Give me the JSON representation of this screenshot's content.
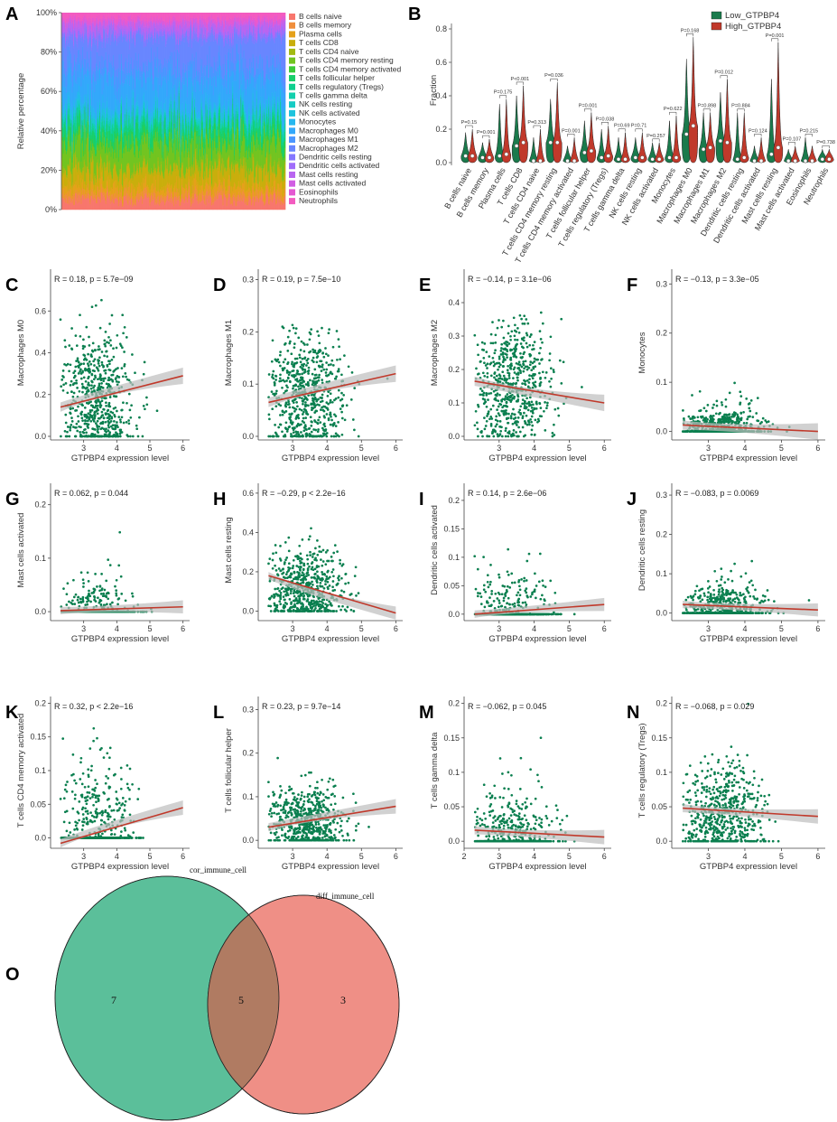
{
  "chart_data": [
    {
      "panel": "A",
      "type": "area",
      "title": "",
      "xlabel": "",
      "ylabel": "Relative percentage",
      "ylim": [
        0,
        100
      ],
      "yticks": [
        "0%",
        "20%",
        "40%",
        "60%",
        "80%",
        "100%"
      ],
      "legend": [
        "B cells naive",
        "B cells memory",
        "Plasma cells",
        "T cells CD8",
        "T cells CD4 naive",
        "T cells CD4 memory resting",
        "T cells CD4 memory activated",
        "T cells follicular helper",
        "T cells regulatory (Tregs)",
        "T cells gamma delta",
        "NK cells resting",
        "NK cells activated",
        "Monocytes",
        "Macrophages M0",
        "Macrophages M1",
        "Macrophages M2",
        "Dendritic cells resting",
        "Dendritic cells activated",
        "Mast cells resting",
        "Mast cells activated",
        "Eosinophils",
        "Neutrophils"
      ],
      "legend_colors": [
        "#f8766d",
        "#f08e3c",
        "#e5a11a",
        "#c9ae0c",
        "#a3ba12",
        "#72c420",
        "#3bcb38",
        "#18cf6a",
        "#0fd08f",
        "#12d0ad",
        "#17ccc4",
        "#1ec3dd",
        "#26b7ef",
        "#33a8fb",
        "#4b96ff",
        "#6886ff",
        "#8577ff",
        "#a06cfb",
        "#b965f0",
        "#d15ee3",
        "#e458d2",
        "#f35bc0"
      ],
      "mean_fractions": [
        5,
        3,
        4,
        8,
        1,
        12,
        2,
        6,
        3,
        1,
        2,
        2,
        3,
        15,
        7,
        13,
        2,
        1,
        4,
        1,
        2,
        3
      ]
    },
    {
      "panel": "B",
      "type": "violin",
      "ylabel": "Fraction",
      "ylim": [
        0,
        0.8
      ],
      "yticks": [
        "0.0",
        "0.2",
        "0.4",
        "0.6",
        "0.8"
      ],
      "series": [
        {
          "name": "Low_GTPBP4",
          "color": "#1a7a4c"
        },
        {
          "name": "High_GTPBP4",
          "color": "#c0392b"
        }
      ],
      "categories": [
        "B cells naive",
        "B cells memory",
        "Plasma cells",
        "T cells CD8",
        "T cells CD4 naive",
        "T cells CD4 memory resting",
        "T cells CD4 memory activated",
        "T cells follicular helper",
        "T cells regulatory (Tregs)",
        "T cells gamma delta",
        "NK cells resting",
        "NK cells activated",
        "Monocytes",
        "Macrophages M0",
        "Macrophages M1",
        "Macrophages M2",
        "Dendritic cells resting",
        "Dendritic cells activated",
        "Mast cells resting",
        "Mast cells activated",
        "Eosinophils",
        "Neutrophils"
      ],
      "pvalues": [
        "P=0.15",
        "P=0.001",
        "P=0.175",
        "P<0.001",
        "P=0.313",
        "P=0.036",
        "P=0.001",
        "P=0.001",
        "P=0.038",
        "P=0.69",
        "P=0.71",
        "P=0.257",
        "P=0.622",
        "P=0.168",
        "P=0.898",
        "P=0.012",
        "P=0.884",
        "P=0.124",
        "P=0.001",
        "P=0.107",
        "P=0.215",
        "P=0.738"
      ],
      "max_low": [
        0.18,
        0.12,
        0.35,
        0.4,
        0.15,
        0.38,
        0.1,
        0.25,
        0.2,
        0.15,
        0.15,
        0.12,
        0.25,
        0.62,
        0.3,
        0.42,
        0.3,
        0.1,
        0.5,
        0.08,
        0.15,
        0.08
      ],
      "max_high": [
        0.2,
        0.14,
        0.38,
        0.46,
        0.2,
        0.48,
        0.15,
        0.3,
        0.22,
        0.18,
        0.18,
        0.12,
        0.28,
        0.75,
        0.3,
        0.5,
        0.3,
        0.15,
        0.72,
        0.1,
        0.1,
        0.08
      ],
      "median_low": [
        0.04,
        0.03,
        0.04,
        0.1,
        0.01,
        0.12,
        0.01,
        0.06,
        0.03,
        0.02,
        0.03,
        0.02,
        0.03,
        0.17,
        0.08,
        0.13,
        0.02,
        0.01,
        0.05,
        0.01,
        0.01,
        0.02
      ],
      "median_high": [
        0.04,
        0.03,
        0.05,
        0.12,
        0.01,
        0.12,
        0.01,
        0.07,
        0.04,
        0.02,
        0.03,
        0.02,
        0.03,
        0.22,
        0.09,
        0.12,
        0.03,
        0.01,
        0.09,
        0.01,
        0.01,
        0.02
      ]
    },
    {
      "panel": "C",
      "type": "scatter",
      "ylabel": "Macrophages M0",
      "xlabel": "GTPBP4 expression level",
      "r_text": "R = 0.18, p = 5.7e−09",
      "xlim": [
        2,
        6.2
      ],
      "ylim": [
        0,
        0.8
      ],
      "yticks": [
        0,
        0.2,
        0.4,
        0.6
      ],
      "xticks": [
        3,
        4,
        5,
        6
      ],
      "fit": [
        0.14,
        0.29
      ],
      "center": 0.2,
      "spread": 0.15,
      "floor_frac": 0.12
    },
    {
      "panel": "D",
      "type": "scatter",
      "ylabel": "Macrophages M1",
      "xlabel": "GTPBP4 expression level",
      "r_text": "R = 0.19, p = 7.5e−10",
      "xlim": [
        2,
        6.2
      ],
      "ylim": [
        0,
        0.32
      ],
      "yticks": [
        0,
        0.1,
        0.2,
        0.3
      ],
      "xticks": [
        3,
        4,
        5,
        6
      ],
      "fit": [
        0.065,
        0.12
      ],
      "center": 0.085,
      "spread": 0.045,
      "floor_frac": 0.06
    },
    {
      "panel": "E",
      "type": "scatter",
      "ylabel": "Macrophages M2",
      "xlabel": "GTPBP4 expression level",
      "r_text": "R = −0.14, p = 3.1e−06",
      "xlim": [
        2,
        6.2
      ],
      "ylim": [
        0,
        0.5
      ],
      "yticks": [
        0,
        0.1,
        0.2,
        0.3,
        0.4
      ],
      "xticks": [
        3,
        4,
        5,
        6
      ],
      "fit": [
        0.165,
        0.1
      ],
      "center": 0.15,
      "spread": 0.07,
      "floor_frac": 0.02
    },
    {
      "panel": "F",
      "type": "scatter",
      "ylabel": "Monocytes",
      "xlabel": "GTPBP4 expression level",
      "r_text": "R = −0.13, p = 3.3e−05",
      "xlim": [
        2,
        6.2
      ],
      "ylim": [
        -0.01,
        0.33
      ],
      "yticks": [
        0,
        0.1,
        0.2,
        0.3
      ],
      "xticks": [
        3,
        4,
        5,
        6
      ],
      "fit": [
        0.013,
        0.0
      ],
      "center": 0.015,
      "spread": 0.025,
      "floor_frac": 0.45
    },
    {
      "panel": "G",
      "type": "scatter",
      "ylabel": "Mast cells activated",
      "xlabel": "GTPBP4 expression level",
      "r_text": "R = 0.062, p = 0.044",
      "xlim": [
        2,
        6.2
      ],
      "ylim": [
        -0.01,
        0.24
      ],
      "yticks": [
        0,
        0.1,
        0.2
      ],
      "xticks": [
        3,
        4,
        5,
        6
      ],
      "fit": [
        0.002,
        0.009
      ],
      "center": 0.02,
      "spread": 0.025,
      "floor_frac": 0.8
    },
    {
      "panel": "H",
      "type": "scatter",
      "ylabel": "Mast cells resting",
      "xlabel": "GTPBP4 expression level",
      "r_text": "R = −0.29, p < 2.2e−16",
      "xlim": [
        2,
        6.2
      ],
      "ylim": [
        -0.03,
        0.65
      ],
      "yticks": [
        0,
        0.2,
        0.4,
        0.6
      ],
      "xticks": [
        3,
        4,
        5,
        6
      ],
      "fit": [
        0.18,
        -0.01
      ],
      "center": 0.12,
      "spread": 0.1,
      "floor_frac": 0.1
    },
    {
      "panel": "I",
      "type": "scatter",
      "ylabel": "Dendritic cells activated",
      "xlabel": "GTPBP4 expression level",
      "r_text": "R = 0.14, p = 2.6e−06",
      "xlim": [
        2,
        6.2
      ],
      "ylim": [
        -0.005,
        0.23
      ],
      "yticks": [
        0,
        0.05,
        0.1,
        0.15,
        0.2
      ],
      "xticks": [
        3,
        4,
        5,
        6
      ],
      "fit": [
        0.0,
        0.017
      ],
      "center": 0.03,
      "spread": 0.03,
      "floor_frac": 0.75
    },
    {
      "panel": "J",
      "type": "scatter",
      "ylabel": "Dendritic cells resting",
      "xlabel": "GTPBP4 expression level",
      "r_text": "R = −0.083, p = 0.0069",
      "xlim": [
        2,
        6.2
      ],
      "ylim": [
        -0.01,
        0.33
      ],
      "yticks": [
        0,
        0.1,
        0.2,
        0.3
      ],
      "xticks": [
        3,
        4,
        5,
        6
      ],
      "fit": [
        0.022,
        0.008
      ],
      "center": 0.025,
      "spread": 0.03,
      "floor_frac": 0.5
    },
    {
      "panel": "K",
      "type": "scatter",
      "ylabel": "T cells CD4 memory activated",
      "xlabel": "GTPBP4 expression level",
      "r_text": "R = 0.32, p < 2.2e−16",
      "xlim": [
        2,
        6.2
      ],
      "ylim": [
        -0.01,
        0.21
      ],
      "yticks": [
        0,
        0.05,
        0.1,
        0.15,
        0.2
      ],
      "xticks": [
        3,
        4,
        5,
        6
      ],
      "fit": [
        -0.008,
        0.045
      ],
      "center": 0.04,
      "spread": 0.035,
      "floor_frac": 0.6
    },
    {
      "panel": "L",
      "type": "scatter",
      "ylabel": "T cells follicular helper",
      "xlabel": "GTPBP4 expression level",
      "r_text": "R = 0.23, p = 9.7e−14",
      "xlim": [
        2,
        6.2
      ],
      "ylim": [
        -0.01,
        0.33
      ],
      "yticks": [
        0,
        0.1,
        0.2,
        0.3
      ],
      "xticks": [
        3,
        4,
        5,
        6
      ],
      "fit": [
        0.03,
        0.078
      ],
      "center": 0.05,
      "spread": 0.035,
      "floor_frac": 0.15
    },
    {
      "panel": "M",
      "type": "scatter",
      "ylabel": "T cells gamma delta",
      "xlabel": "GTPBP4 expression level",
      "r_text": "R = −0.062, p = 0.045",
      "xlim": [
        2,
        6.2
      ],
      "ylim": [
        -0.005,
        0.21
      ],
      "yticks": [
        0,
        0.05,
        0.1,
        0.15,
        0.2
      ],
      "xticks": [
        2,
        3,
        4,
        5,
        6
      ],
      "fit": [
        0.016,
        0.006
      ],
      "center": 0.025,
      "spread": 0.035,
      "floor_frac": 0.6
    },
    {
      "panel": "N",
      "type": "scatter",
      "ylabel": "T cells regulatory (Tregs)",
      "xlabel": "GTPBP4 expression level",
      "r_text": "R = −0.068, p = 0.029",
      "xlim": [
        2,
        6.2
      ],
      "ylim": [
        -0.005,
        0.21
      ],
      "yticks": [
        0,
        0.05,
        0.1,
        0.15,
        0.2
      ],
      "xticks": [
        3,
        4,
        5,
        6
      ],
      "fit": [
        0.048,
        0.036
      ],
      "center": 0.045,
      "spread": 0.03,
      "floor_frac": 0.15
    },
    {
      "panel": "O",
      "type": "venn",
      "sets": [
        {
          "name": "cor_immune_cell",
          "only": "7",
          "color": "#5bbf9a"
        },
        {
          "name": "diff_immune_cell",
          "only": "3",
          "color": "#ef8f86"
        }
      ],
      "overlap": "5",
      "overlap_color": "#b07b62"
    }
  ],
  "panel_labels": [
    "A",
    "B",
    "C",
    "D",
    "E",
    "F",
    "G",
    "H",
    "I",
    "J",
    "K",
    "L",
    "M",
    "N",
    "O"
  ],
  "colors": {
    "point": "#0a7f4f",
    "fit": "#c0392b",
    "band": "#bdbdbd"
  }
}
